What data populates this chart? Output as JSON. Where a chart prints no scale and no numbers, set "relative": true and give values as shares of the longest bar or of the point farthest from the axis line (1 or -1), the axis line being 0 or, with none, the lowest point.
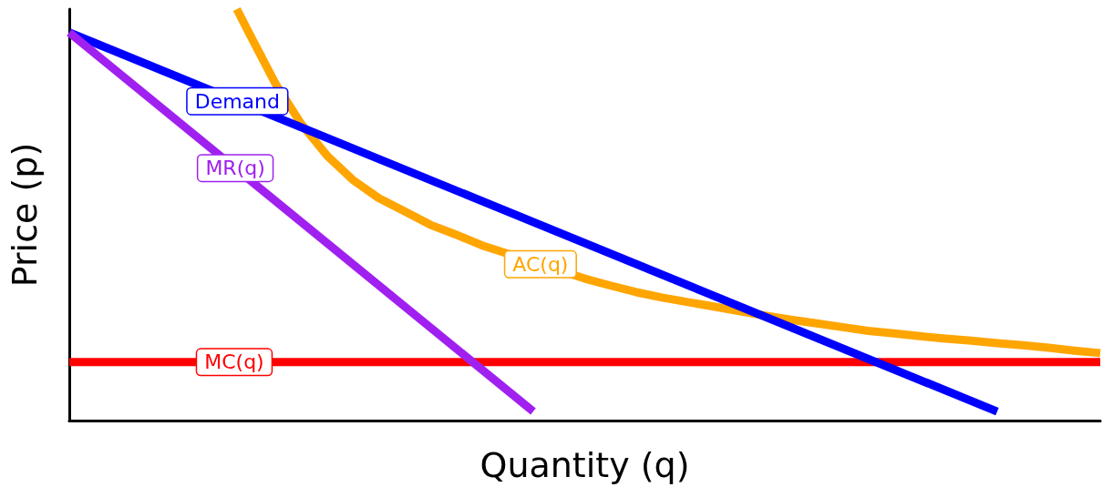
{
  "chart_data": {
    "type": "line",
    "relative": true,
    "xlabel": "Quantity (q)",
    "ylabel": "Price (p)",
    "grid": false,
    "legend": false,
    "marker": "none",
    "line_style": "solid",
    "categories": [
      null,
      null,
      null,
      null,
      null,
      null,
      null,
      null,
      null,
      null,
      null,
      null,
      null,
      null,
      null,
      null,
      null,
      null,
      null,
      null,
      null,
      null,
      null,
      null,
      null,
      null,
      null,
      null,
      null,
      null,
      null,
      null,
      null,
      null,
      null,
      null,
      null,
      null,
      null,
      null,
      null,
      null,
      null,
      null,
      null,
      null,
      null,
      null,
      null,
      null,
      null,
      null,
      null,
      null,
      null,
      null,
      null,
      null,
      null,
      null,
      null,
      null,
      null,
      null,
      null,
      null,
      null,
      null,
      null,
      null,
      null,
      null,
      null,
      null,
      null,
      null,
      null,
      null,
      null,
      null,
      null
    ],
    "series": [
      {
        "name": "MC(q)",
        "color": "#ff0000",
        "values": [
          0.142,
          null,
          null,
          null,
          null,
          null,
          null,
          null,
          null,
          null,
          null,
          null,
          null,
          null,
          null,
          null,
          null,
          null,
          null,
          null,
          null,
          null,
          null,
          null,
          null,
          null,
          null,
          null,
          null,
          null,
          null,
          null,
          null,
          null,
          null,
          null,
          null,
          null,
          null,
          null,
          null,
          null,
          null,
          null,
          null,
          null,
          null,
          null,
          null,
          null,
          null,
          null,
          null,
          null,
          null,
          null,
          null,
          null,
          null,
          null,
          null,
          null,
          null,
          null,
          null,
          null,
          null,
          null,
          null,
          null,
          null,
          null,
          null,
          null,
          null,
          null,
          null,
          null,
          null,
          null,
          0.142
        ]
      },
      {
        "name": "AC(q)",
        "color": "#ffa500",
        "values": [
          null,
          null,
          null,
          null,
          null,
          null,
          null,
          null,
          null,
          null,
          null,
          null,
          null,
          1.0,
          0.939,
          null,
          0.819,
          null,
          0.721,
          null,
          0.644,
          null,
          0.585,
          null,
          0.541,
          null,
          0.509,
          null,
          0.476,
          null,
          0.452,
          null,
          0.426,
          null,
          null,
          null,
          null,
          null,
          null,
          null,
          0.345,
          null,
          0.328,
          null,
          0.312,
          null,
          0.299,
          null,
          0.288,
          null,
          0.277,
          null,
          0.266,
          null,
          0.255,
          null,
          0.245,
          null,
          0.236,
          null,
          0.227,
          null,
          0.218,
          null,
          0.212,
          null,
          0.205,
          null,
          0.199,
          null,
          0.194,
          null,
          0.188,
          null,
          0.183,
          null,
          0.177,
          null,
          0.17,
          null,
          0.164
        ]
      },
      {
        "name": "Demand",
        "color": "#0000ff",
        "values": [
          0.943,
          null,
          null,
          null,
          null,
          null,
          null,
          null,
          null,
          null,
          null,
          null,
          null,
          null,
          null,
          null,
          null,
          null,
          null,
          null,
          null,
          null,
          null,
          null,
          null,
          null,
          null,
          null,
          null,
          null,
          null,
          null,
          null,
          null,
          null,
          null,
          null,
          null,
          null,
          null,
          null,
          null,
          null,
          null,
          null,
          null,
          null,
          null,
          null,
          null,
          null,
          null,
          null,
          null,
          null,
          null,
          null,
          null,
          null,
          null,
          null,
          null,
          null,
          null,
          null,
          null,
          null,
          null,
          null,
          null,
          null,
          null,
          0.022,
          null,
          null,
          null,
          null,
          null,
          null,
          null,
          null
        ]
      },
      {
        "name": "MR(q)",
        "color": "#a020f0",
        "values": [
          0.943,
          null,
          null,
          null,
          null,
          null,
          null,
          null,
          null,
          null,
          null,
          null,
          null,
          null,
          null,
          null,
          null,
          null,
          null,
          null,
          null,
          null,
          null,
          null,
          null,
          null,
          null,
          null,
          null,
          null,
          null,
          null,
          null,
          null,
          null,
          null,
          0.022,
          null,
          null,
          null,
          null,
          null,
          null,
          null,
          null,
          null,
          null,
          null,
          null,
          null,
          null,
          null,
          null,
          null,
          null,
          null,
          null,
          null,
          null,
          null,
          null,
          null,
          null,
          null,
          null,
          null,
          null,
          null,
          null,
          null,
          null,
          null,
          null,
          null,
          null,
          null,
          null,
          null,
          null,
          null,
          null
        ]
      }
    ]
  }
}
